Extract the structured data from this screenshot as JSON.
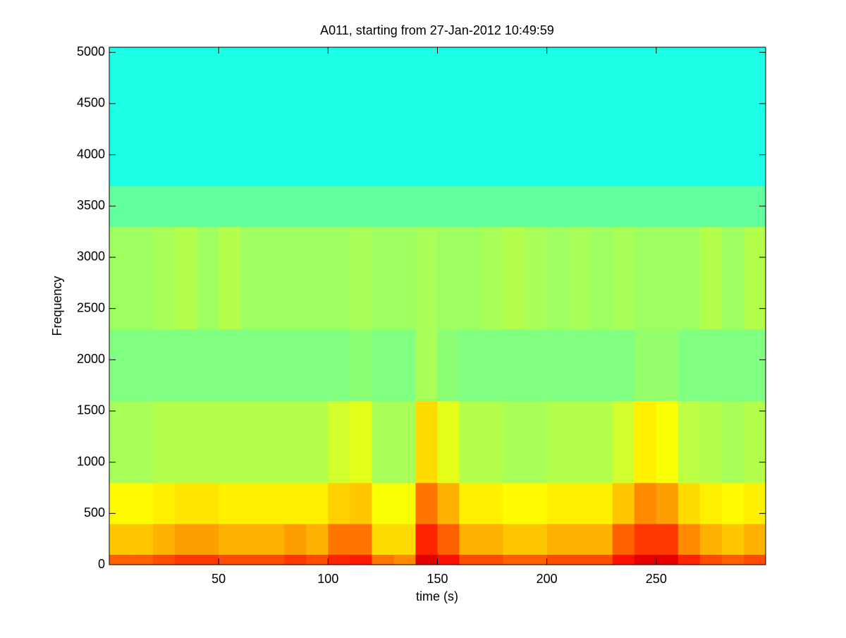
{
  "chart_data": {
    "type": "heatmap",
    "title": "A011, starting from 27-Jan-2012 10:49:59",
    "x_label": "time (s)",
    "y_label": "Frequency",
    "xlim": [
      0,
      300
    ],
    "ylim": [
      0,
      5050
    ],
    "xticks": [
      50,
      100,
      150,
      200,
      250
    ],
    "yticks": [
      0,
      500,
      1000,
      1500,
      2000,
      2500,
      3000,
      3500,
      4000,
      4500,
      5000
    ],
    "colormap": "jet",
    "x_edges": [
      0,
      10,
      20,
      30,
      40,
      50,
      60,
      70,
      80,
      90,
      100,
      110,
      120,
      130,
      140,
      150,
      160,
      170,
      180,
      190,
      200,
      210,
      220,
      230,
      240,
      250,
      260,
      270,
      280,
      290,
      300
    ],
    "y_edges": [
      0,
      100,
      400,
      800,
      1600,
      2300,
      3300,
      3700,
      5050
    ],
    "z": [
      [
        0.78,
        0.78,
        0.8,
        0.82,
        0.82,
        0.8,
        0.8,
        0.8,
        0.82,
        0.8,
        0.84,
        0.85,
        0.76,
        0.74,
        0.9,
        0.86,
        0.8,
        0.8,
        0.78,
        0.78,
        0.8,
        0.8,
        0.8,
        0.86,
        0.9,
        0.9,
        0.84,
        0.8,
        0.78,
        0.8
      ],
      [
        0.68,
        0.68,
        0.7,
        0.72,
        0.72,
        0.7,
        0.7,
        0.7,
        0.72,
        0.7,
        0.76,
        0.76,
        0.66,
        0.66,
        0.84,
        0.78,
        0.7,
        0.7,
        0.68,
        0.68,
        0.7,
        0.7,
        0.7,
        0.78,
        0.82,
        0.82,
        0.74,
        0.7,
        0.68,
        0.7
      ],
      [
        0.63,
        0.63,
        0.64,
        0.65,
        0.65,
        0.64,
        0.64,
        0.64,
        0.64,
        0.64,
        0.67,
        0.68,
        0.62,
        0.62,
        0.76,
        0.7,
        0.64,
        0.64,
        0.63,
        0.63,
        0.64,
        0.64,
        0.64,
        0.68,
        0.74,
        0.72,
        0.66,
        0.64,
        0.63,
        0.64
      ],
      [
        0.54,
        0.54,
        0.55,
        0.55,
        0.55,
        0.55,
        0.55,
        0.55,
        0.55,
        0.55,
        0.58,
        0.6,
        0.54,
        0.54,
        0.66,
        0.6,
        0.55,
        0.55,
        0.54,
        0.54,
        0.55,
        0.55,
        0.55,
        0.58,
        0.64,
        0.62,
        0.56,
        0.55,
        0.54,
        0.55
      ],
      [
        0.5,
        0.5,
        0.5,
        0.5,
        0.5,
        0.5,
        0.5,
        0.5,
        0.5,
        0.5,
        0.5,
        0.51,
        0.5,
        0.5,
        0.54,
        0.51,
        0.5,
        0.5,
        0.5,
        0.5,
        0.5,
        0.5,
        0.5,
        0.5,
        0.52,
        0.52,
        0.5,
        0.5,
        0.5,
        0.5
      ],
      [
        0.53,
        0.53,
        0.54,
        0.55,
        0.53,
        0.55,
        0.53,
        0.53,
        0.53,
        0.53,
        0.53,
        0.54,
        0.53,
        0.53,
        0.54,
        0.53,
        0.53,
        0.54,
        0.55,
        0.54,
        0.53,
        0.54,
        0.53,
        0.54,
        0.53,
        0.53,
        0.53,
        0.55,
        0.53,
        0.55
      ],
      [
        0.47,
        0.47,
        0.47,
        0.47,
        0.47,
        0.47,
        0.47,
        0.47,
        0.47,
        0.47,
        0.47,
        0.47,
        0.47,
        0.47,
        0.47,
        0.47,
        0.47,
        0.47,
        0.47,
        0.47,
        0.47,
        0.47,
        0.47,
        0.47,
        0.47,
        0.47,
        0.47,
        0.47,
        0.47,
        0.47
      ],
      [
        0.4,
        0.4,
        0.4,
        0.4,
        0.4,
        0.4,
        0.4,
        0.4,
        0.4,
        0.4,
        0.4,
        0.4,
        0.4,
        0.4,
        0.4,
        0.4,
        0.4,
        0.4,
        0.4,
        0.4,
        0.4,
        0.4,
        0.4,
        0.4,
        0.4,
        0.4,
        0.4,
        0.4,
        0.4,
        0.4
      ]
    ]
  }
}
